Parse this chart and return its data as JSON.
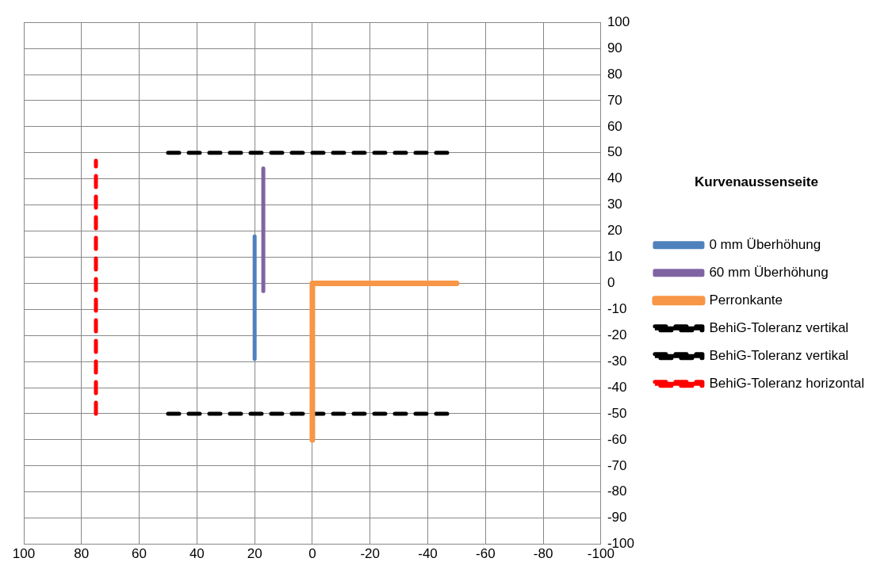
{
  "chart_data": {
    "type": "line",
    "legend_title": "Kurvenaussenseite",
    "legend": "right",
    "grid": true,
    "marker": "none",
    "xlim": [
      100,
      -100
    ],
    "xticks": [
      100,
      80,
      60,
      40,
      20,
      0,
      -20,
      -40,
      -60,
      -80,
      -100
    ],
    "ylim": [
      -100,
      100
    ],
    "yticks": [
      -100,
      -90,
      -80,
      -70,
      -60,
      -50,
      -40,
      -30,
      -20,
      -10,
      0,
      10,
      20,
      30,
      40,
      50,
      60,
      70,
      80,
      90,
      100
    ],
    "series": [
      {
        "name": "0 mm Überhöhung",
        "color": "#4f81bd",
        "line_style": "solid",
        "x": [
          20,
          20
        ],
        "values": [
          -29,
          18
        ]
      },
      {
        "name": "60 mm Überhöhung",
        "color": "#8064a2",
        "line_style": "solid",
        "x": [
          17,
          17
        ],
        "values": [
          -3,
          44
        ]
      },
      {
        "name": "Perronkante",
        "color": "#f79646",
        "line_style": "solid",
        "x": [
          0,
          0,
          -50
        ],
        "values": [
          -60,
          0,
          0
        ]
      },
      {
        "name": "BehiG-Toleranz vertikal",
        "color": "#000000",
        "line_style": "dashed",
        "x": [
          50,
          -50
        ],
        "values": [
          50,
          50
        ]
      },
      {
        "name": "BehiG-Toleranz vertikal",
        "color": "#000000",
        "line_style": "dashed",
        "x": [
          50,
          -50
        ],
        "values": [
          -50,
          -50
        ]
      },
      {
        "name": "BehiG-Toleranz horizontal",
        "color": "#ff0000",
        "line_style": "dashed",
        "x": [
          75,
          75
        ],
        "values": [
          -50,
          47
        ]
      }
    ]
  }
}
